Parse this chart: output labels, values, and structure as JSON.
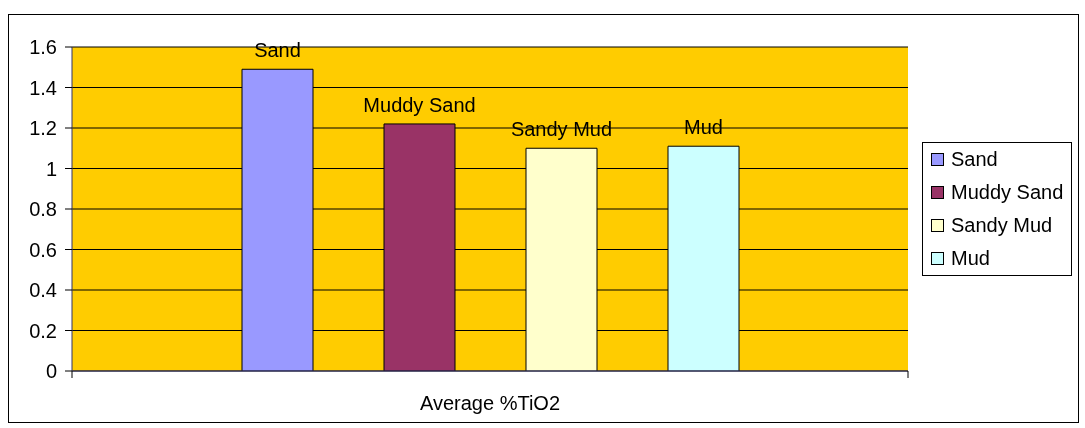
{
  "chart_data": {
    "type": "bar",
    "categories": [
      "Average %TiO2"
    ],
    "series": [
      {
        "name": "Sand",
        "color": "#9999ff",
        "values": [
          1.49
        ]
      },
      {
        "name": "Muddy Sand",
        "color": "#993366",
        "values": [
          1.22
        ]
      },
      {
        "name": "Sandy Mud",
        "color": "#ffffcc",
        "values": [
          1.1
        ]
      },
      {
        "name": "Mud",
        "color": "#ccffff",
        "values": [
          1.11
        ]
      }
    ],
    "ylim": [
      0,
      1.6
    ],
    "yticks": [
      0,
      0.2,
      0.4,
      0.6,
      0.8,
      1,
      1.2,
      1.4,
      1.6
    ],
    "grid": "y",
    "legend": "right"
  }
}
